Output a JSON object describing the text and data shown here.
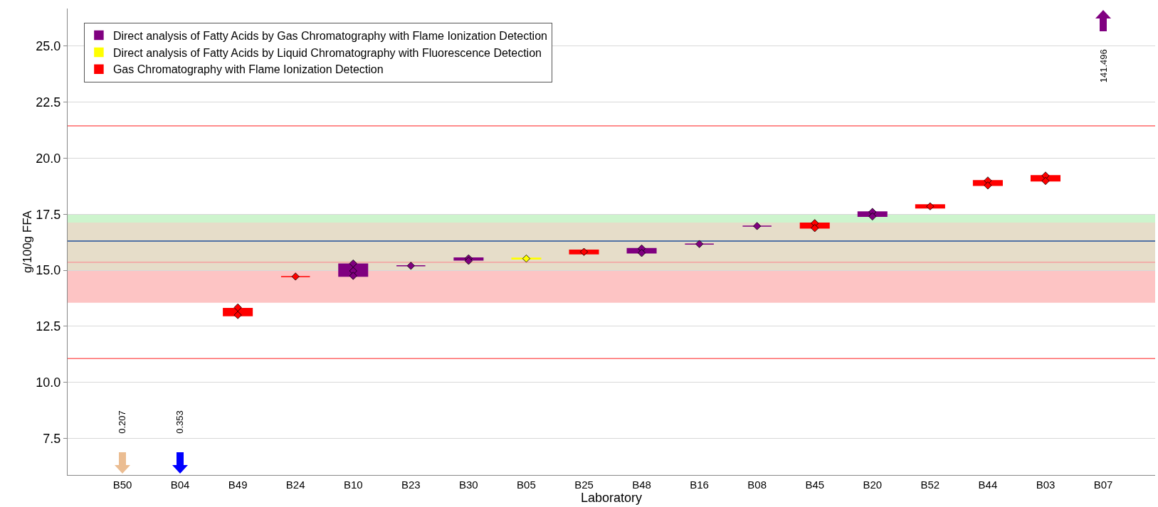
{
  "chart_data": {
    "type": "box",
    "xlabel": "Laboratory",
    "ylabel": "g/100g FFA",
    "categories": [
      "B50",
      "B04",
      "B49",
      "B24",
      "B10",
      "B23",
      "B30",
      "B05",
      "B25",
      "B48",
      "B16",
      "B08",
      "B45",
      "B20",
      "B52",
      "B44",
      "B03",
      "B07"
    ],
    "ylim": [
      5.87,
      26.67
    ],
    "yticks": [
      {
        "value": 7.5,
        "label": "7.5"
      },
      {
        "value": 10,
        "label": "10.0"
      },
      {
        "value": 12.5,
        "label": "12.5"
      },
      {
        "value": 15,
        "label": "15.0"
      },
      {
        "value": 17.5,
        "label": "17.5"
      },
      {
        "value": 20,
        "label": "20.0"
      },
      {
        "value": 22.5,
        "label": "22.5"
      },
      {
        "value": 25,
        "label": "25.0"
      }
    ],
    "grid": "y",
    "legend": "top left",
    "marker": "diamond",
    "series": [
      {
        "name": "Direct analysis of Fatty Acids by Gas Chromatography with Flame Ionization Detection",
        "type": "box",
        "color": "#800080",
        "boxes": [
          null,
          null,
          null,
          null,
          {
            "low": 14.73,
            "q1": 14.73,
            "median": 15.0,
            "q3": 15.28,
            "high": 15.28
          },
          {
            "low": 15.2,
            "q1": 15.2,
            "median": 15.2,
            "q3": 15.2,
            "high": 15.2
          },
          {
            "low": 15.45,
            "q1": 15.45,
            "median": 15.5,
            "q3": 15.55,
            "high": 15.55
          },
          null,
          null,
          {
            "low": 15.77,
            "q1": 15.77,
            "median": 15.87,
            "q3": 15.97,
            "high": 15.97
          },
          {
            "low": 16.17,
            "q1": 16.17,
            "median": 16.17,
            "q3": 16.17,
            "high": 16.17
          },
          {
            "low": 16.97,
            "q1": 16.97,
            "median": 16.97,
            "q3": 16.97,
            "high": 16.97
          },
          null,
          {
            "low": 17.4,
            "q1": 17.4,
            "median": 17.52,
            "q3": 17.6,
            "high": 17.6
          },
          null,
          null,
          null,
          null
        ]
      },
      {
        "name": "Direct analysis of Fatty Acids by Liquid Chromatography with Fluorescence Detection",
        "type": "box",
        "color": "#ffff00",
        "boxes": [
          null,
          null,
          null,
          null,
          null,
          null,
          null,
          {
            "low": 15.5,
            "q1": 15.5,
            "median": 15.52,
            "q3": 15.54,
            "high": 15.54
          },
          null,
          null,
          null,
          null,
          null,
          null,
          null,
          null,
          null,
          null
        ]
      },
      {
        "name": "Gas Chromatography with Flame Ionization Detection",
        "type": "box",
        "color": "#ff0000",
        "boxes": [
          null,
          null,
          {
            "low": 12.97,
            "q1": 12.97,
            "median": 13.16,
            "q3": 13.3,
            "high": 13.3
          },
          {
            "low": 14.72,
            "q1": 14.72,
            "median": 14.72,
            "q3": 14.72,
            "high": 14.72
          },
          null,
          null,
          null,
          null,
          {
            "low": 15.73,
            "q1": 15.73,
            "median": 15.82,
            "q3": 15.9,
            "high": 15.9
          },
          null,
          null,
          null,
          {
            "low": 16.88,
            "q1": 16.88,
            "median": 16.98,
            "q3": 17.1,
            "high": 17.1
          },
          null,
          {
            "low": 17.78,
            "q1": 17.78,
            "median": 17.85,
            "q3": 17.92,
            "high": 17.92
          },
          {
            "low": 18.78,
            "q1": 18.78,
            "median": 18.9,
            "q3": 19.0,
            "high": 19.0
          },
          {
            "low": 18.98,
            "q1": 18.98,
            "median": 19.1,
            "q3": 19.22,
            "high": 19.22
          },
          null
        ]
      },
      {
        "type": "scatter",
        "color": "#800080",
        "x": [
          "B10",
          "B10",
          "B10",
          "B23",
          "B30",
          "B30",
          "B48",
          "B48",
          "B16",
          "B08",
          "B20",
          "B20"
        ],
        "values": [
          15.3,
          14.97,
          14.75,
          15.2,
          15.53,
          15.42,
          15.97,
          15.77,
          16.17,
          16.97,
          17.6,
          17.4
        ]
      },
      {
        "type": "scatter",
        "color": "#ffff00",
        "x": [
          "B05"
        ],
        "values": [
          15.52
        ]
      },
      {
        "type": "scatter",
        "color": "#ff0000",
        "x": [
          "B49",
          "B49",
          "B24",
          "B25",
          "B45",
          "B45",
          "B52",
          "B44",
          "B44",
          "B03",
          "B03"
        ],
        "values": [
          13.34,
          13.0,
          14.72,
          15.82,
          17.1,
          16.88,
          17.85,
          19.0,
          18.78,
          19.22,
          18.98
        ]
      }
    ],
    "bands": [
      {
        "axis": "y",
        "from": 17.13,
        "to": 17.5,
        "color": "#cdf4cd"
      },
      {
        "axis": "y",
        "from": 15.0,
        "to": 17.13,
        "color": "#e6ddc9"
      },
      {
        "axis": "y",
        "from": 13.55,
        "to": 15.0,
        "color": "#fdc4c4"
      }
    ],
    "ref_lines": [
      {
        "axis": "y",
        "value": 21.44,
        "color": "#ff6666"
      },
      {
        "axis": "y",
        "value": 11.06,
        "color": "#ff6666"
      },
      {
        "axis": "y",
        "value": 16.3,
        "color": "#1f4e99"
      },
      {
        "axis": "y",
        "value": 15.36,
        "color": "#f4a0a0"
      }
    ],
    "annotations": [
      "0.207",
      "0.353",
      "141.496"
    ]
  }
}
